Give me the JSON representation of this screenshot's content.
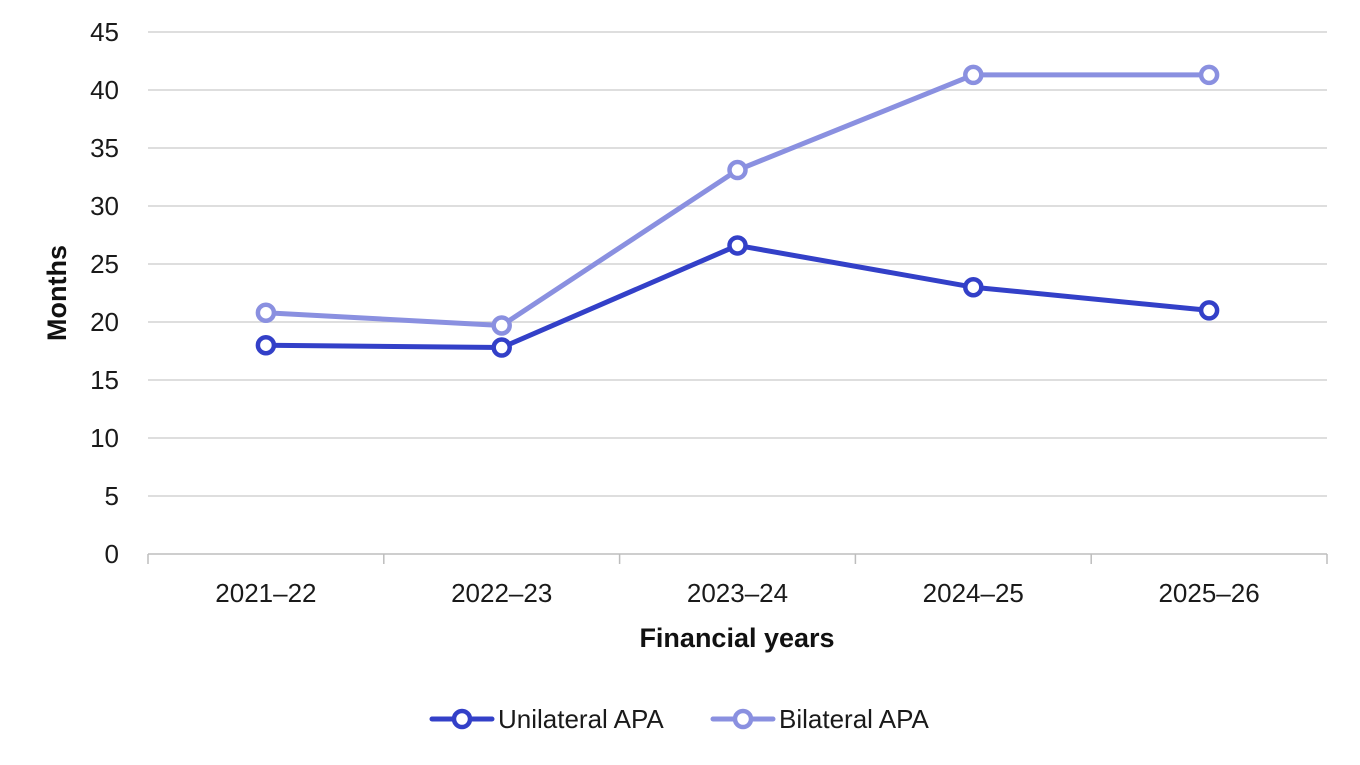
{
  "chart_data": {
    "type": "line",
    "categories": [
      "2021–22",
      "2022–23",
      "2023–24",
      "2024–25",
      "2025–26"
    ],
    "series": [
      {
        "name": "Unilateral APA",
        "values": [
          18.0,
          17.8,
          26.6,
          23.0,
          21.0
        ],
        "color": "#3340c8"
      },
      {
        "name": "Bilateral APA",
        "values": [
          20.8,
          19.7,
          33.1,
          41.3,
          41.3
        ],
        "color": "#8a90e0"
      }
    ],
    "xlabel": "Financial years",
    "ylabel": "Months",
    "ylim": [
      0,
      45
    ],
    "yticks": [
      0,
      5,
      10,
      15,
      20,
      25,
      30,
      35,
      40,
      45
    ],
    "grid": true,
    "legend_position": "bottom"
  }
}
